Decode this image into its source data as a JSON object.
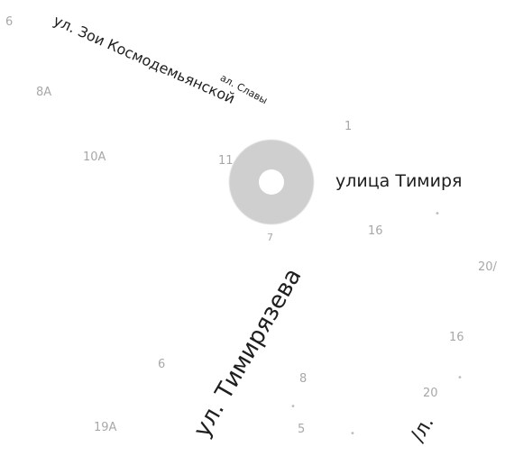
{
  "map": {
    "streets": {
      "zoi": "ул. Зои Космодемьянской",
      "slavy": "ал. Славы",
      "timiryazeva_right": "улица Тимиря",
      "timiryazeva_diag": "ул. Тимирязева",
      "partial_bottom": "/л."
    },
    "house_numbers": {
      "h_6_top": "6",
      "h_8a": "8А",
      "h_10a": "10А",
      "h_1": "1",
      "h_11": "11",
      "h_16": "16",
      "h_20": "20/",
      "h_16b": "16",
      "h_6": "6",
      "h_8": "8",
      "h_20b": "20",
      "h_19a": "19А",
      "h_5": "5",
      "h_7": "7"
    },
    "marker": {
      "type": "location-pin"
    }
  }
}
